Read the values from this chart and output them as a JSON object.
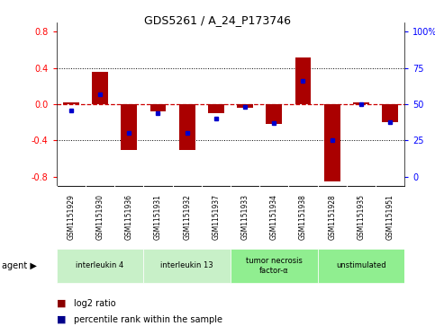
{
  "title": "GDS5261 / A_24_P173746",
  "samples": [
    "GSM1151929",
    "GSM1151930",
    "GSM1151936",
    "GSM1151931",
    "GSM1151932",
    "GSM1151937",
    "GSM1151933",
    "GSM1151934",
    "GSM1151938",
    "GSM1151928",
    "GSM1151935",
    "GSM1151951"
  ],
  "log2_ratio": [
    0.02,
    0.36,
    -0.5,
    -0.08,
    -0.5,
    -0.1,
    -0.04,
    -0.22,
    0.52,
    -0.85,
    0.02,
    -0.2
  ],
  "percentile": [
    46,
    57,
    30,
    44,
    30,
    40,
    48,
    37,
    66,
    25,
    50,
    38
  ],
  "groups": [
    {
      "label": "interleukin 4",
      "start": 0,
      "end": 2,
      "color": "#c8f0c8"
    },
    {
      "label": "interleukin 13",
      "start": 3,
      "end": 5,
      "color": "#c8f0c8"
    },
    {
      "label": "tumor necrosis\nfactor-α",
      "start": 6,
      "end": 8,
      "color": "#90ee90"
    },
    {
      "label": "unstimulated",
      "start": 9,
      "end": 11,
      "color": "#90ee90"
    }
  ],
  "ylim": [
    -0.9,
    0.9
  ],
  "yticks_left": [
    -0.8,
    -0.4,
    0.0,
    0.4,
    0.8
  ],
  "yticks_right": [
    0,
    25,
    50,
    75,
    100
  ],
  "bar_color": "#aa0000",
  "dot_color": "#0000cc",
  "zero_line_color": "#cc0000",
  "grid_color": "#000000",
  "bg_color": "#ffffff",
  "plot_bg_color": "#ffffff",
  "bar_width": 0.55,
  "legend_red_label": "log2 ratio",
  "legend_blue_label": "percentile rank within the sample",
  "sample_bg_color": "#c8c8c8",
  "sample_border_color": "#ffffff"
}
